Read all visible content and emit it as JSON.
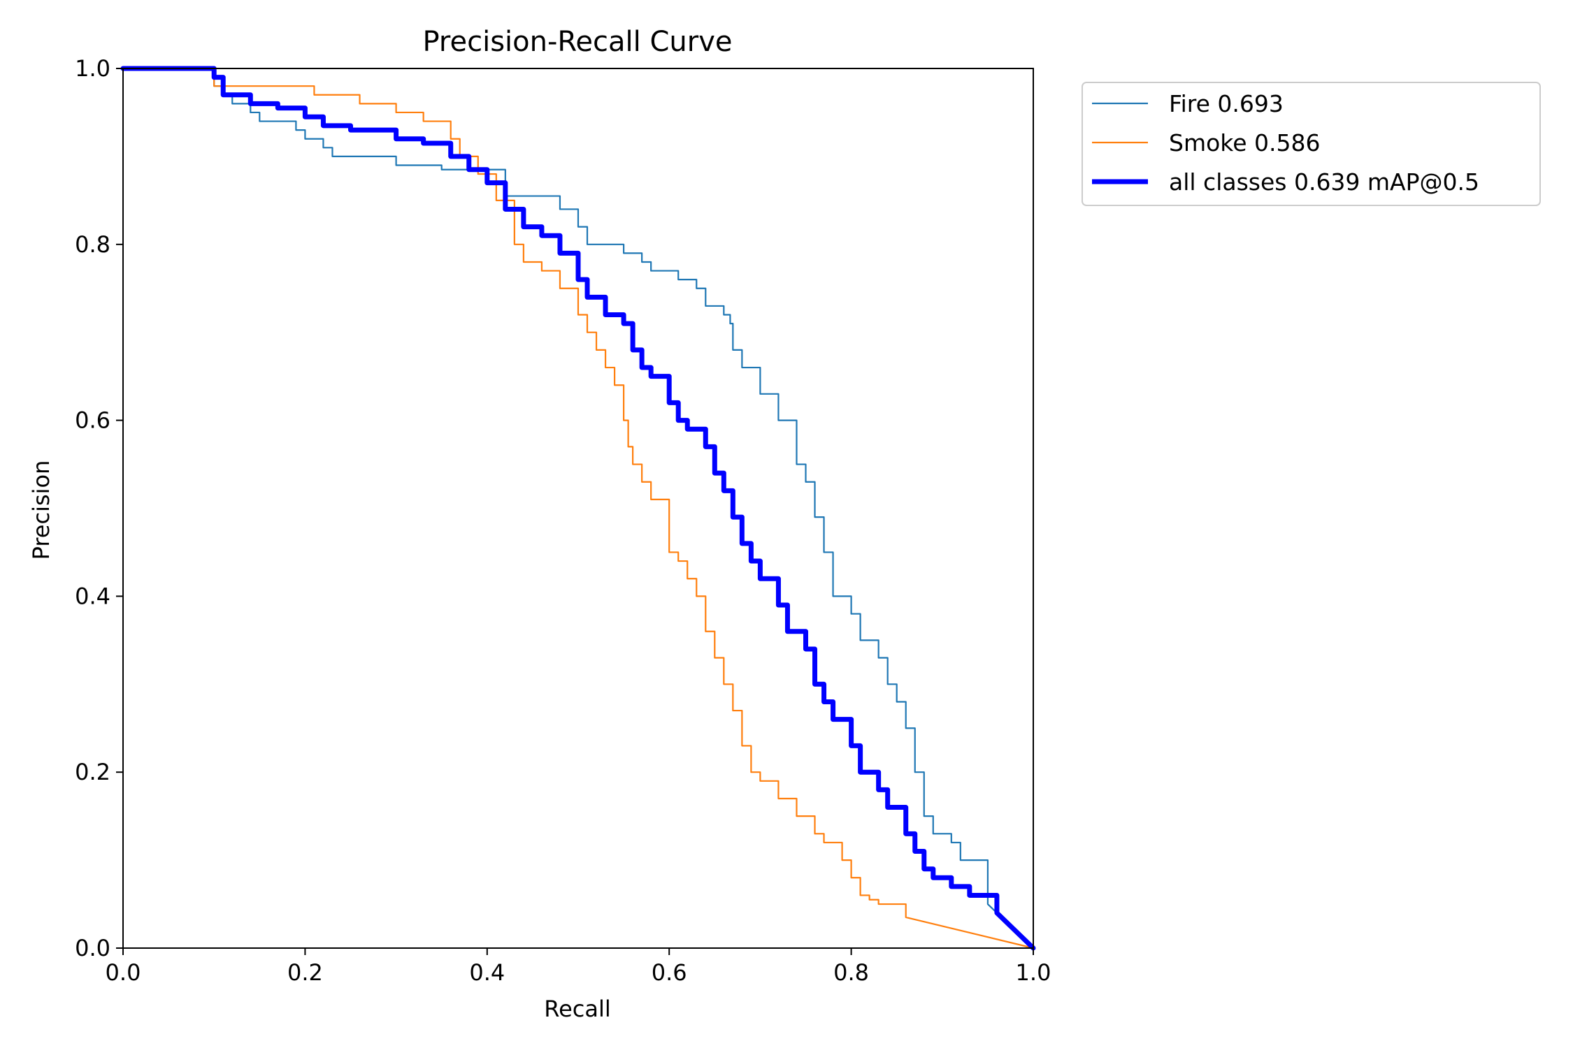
{
  "chart_data": {
    "type": "line",
    "title": "Precision-Recall Curve",
    "xlabel": "Recall",
    "ylabel": "Precision",
    "xlim": [
      0,
      1
    ],
    "ylim": [
      0,
      1
    ],
    "xticks": [
      "0.0",
      "0.2",
      "0.4",
      "0.6",
      "0.8",
      "1.0"
    ],
    "yticks": [
      "0.0",
      "0.2",
      "0.4",
      "0.6",
      "0.8",
      "1.0"
    ],
    "grid": false,
    "legend_position": "outside-upper-right",
    "series": [
      {
        "name": "Fire 0.693",
        "color": "#1f77b4",
        "line_width": "thin",
        "x": [
          0.0,
          0.06,
          0.1,
          0.11,
          0.12,
          0.14,
          0.15,
          0.19,
          0.2,
          0.22,
          0.23,
          0.28,
          0.3,
          0.35,
          0.38,
          0.42,
          0.47,
          0.48,
          0.5,
          0.5,
          0.51,
          0.52,
          0.55,
          0.57,
          0.58,
          0.6,
          0.61,
          0.63,
          0.64,
          0.66,
          0.667,
          0.67,
          0.68,
          0.7,
          0.72,
          0.74,
          0.75,
          0.76,
          0.77,
          0.78,
          0.8,
          0.81,
          0.83,
          0.84,
          0.85,
          0.86,
          0.87,
          0.88,
          0.89,
          0.91,
          0.92,
          0.95,
          1.0
        ],
        "values": [
          1.0,
          1.0,
          0.98,
          0.97,
          0.96,
          0.95,
          0.94,
          0.93,
          0.92,
          0.91,
          0.9,
          0.9,
          0.89,
          0.885,
          0.885,
          0.855,
          0.855,
          0.84,
          0.83,
          0.82,
          0.8,
          0.8,
          0.79,
          0.78,
          0.77,
          0.77,
          0.76,
          0.75,
          0.73,
          0.72,
          0.71,
          0.68,
          0.66,
          0.63,
          0.6,
          0.55,
          0.53,
          0.49,
          0.45,
          0.4,
          0.38,
          0.35,
          0.33,
          0.3,
          0.28,
          0.25,
          0.2,
          0.15,
          0.13,
          0.12,
          0.1,
          0.05,
          0.0
        ]
      },
      {
        "name": "Smoke 0.586",
        "color": "#ff7f0e",
        "line_width": "thin",
        "x": [
          0.0,
          0.06,
          0.1,
          0.17,
          0.21,
          0.26,
          0.3,
          0.33,
          0.36,
          0.37,
          0.39,
          0.41,
          0.43,
          0.44,
          0.46,
          0.48,
          0.5,
          0.51,
          0.52,
          0.53,
          0.54,
          0.55,
          0.555,
          0.56,
          0.57,
          0.58,
          0.6,
          0.61,
          0.62,
          0.63,
          0.64,
          0.65,
          0.66,
          0.67,
          0.68,
          0.69,
          0.7,
          0.72,
          0.74,
          0.76,
          0.77,
          0.79,
          0.8,
          0.81,
          0.82,
          0.83,
          0.86,
          1.0
        ],
        "values": [
          1.0,
          1.0,
          0.98,
          0.98,
          0.97,
          0.96,
          0.95,
          0.94,
          0.92,
          0.9,
          0.88,
          0.85,
          0.8,
          0.78,
          0.77,
          0.75,
          0.72,
          0.7,
          0.68,
          0.66,
          0.64,
          0.6,
          0.57,
          0.55,
          0.53,
          0.51,
          0.45,
          0.44,
          0.42,
          0.4,
          0.36,
          0.33,
          0.3,
          0.27,
          0.23,
          0.2,
          0.19,
          0.17,
          0.15,
          0.13,
          0.12,
          0.1,
          0.08,
          0.06,
          0.055,
          0.05,
          0.035,
          0.0
        ]
      },
      {
        "name": "all classes 0.639 mAP@0.5",
        "color": "#0000ff",
        "line_width": "thick",
        "x": [
          0.0,
          0.06,
          0.1,
          0.11,
          0.14,
          0.17,
          0.2,
          0.22,
          0.25,
          0.3,
          0.33,
          0.36,
          0.38,
          0.4,
          0.42,
          0.44,
          0.46,
          0.48,
          0.5,
          0.51,
          0.53,
          0.55,
          0.56,
          0.57,
          0.58,
          0.6,
          0.61,
          0.62,
          0.64,
          0.65,
          0.66,
          0.67,
          0.68,
          0.69,
          0.7,
          0.72,
          0.73,
          0.75,
          0.76,
          0.77,
          0.78,
          0.8,
          0.81,
          0.83,
          0.84,
          0.86,
          0.87,
          0.88,
          0.89,
          0.91,
          0.93,
          0.96,
          1.0
        ],
        "values": [
          1.0,
          1.0,
          0.99,
          0.97,
          0.96,
          0.955,
          0.945,
          0.935,
          0.93,
          0.92,
          0.915,
          0.9,
          0.885,
          0.87,
          0.84,
          0.82,
          0.81,
          0.79,
          0.76,
          0.74,
          0.72,
          0.71,
          0.68,
          0.66,
          0.65,
          0.62,
          0.6,
          0.59,
          0.57,
          0.54,
          0.52,
          0.49,
          0.46,
          0.44,
          0.42,
          0.39,
          0.36,
          0.34,
          0.3,
          0.28,
          0.26,
          0.23,
          0.2,
          0.18,
          0.16,
          0.13,
          0.11,
          0.09,
          0.08,
          0.07,
          0.06,
          0.04,
          0.0
        ]
      }
    ]
  }
}
